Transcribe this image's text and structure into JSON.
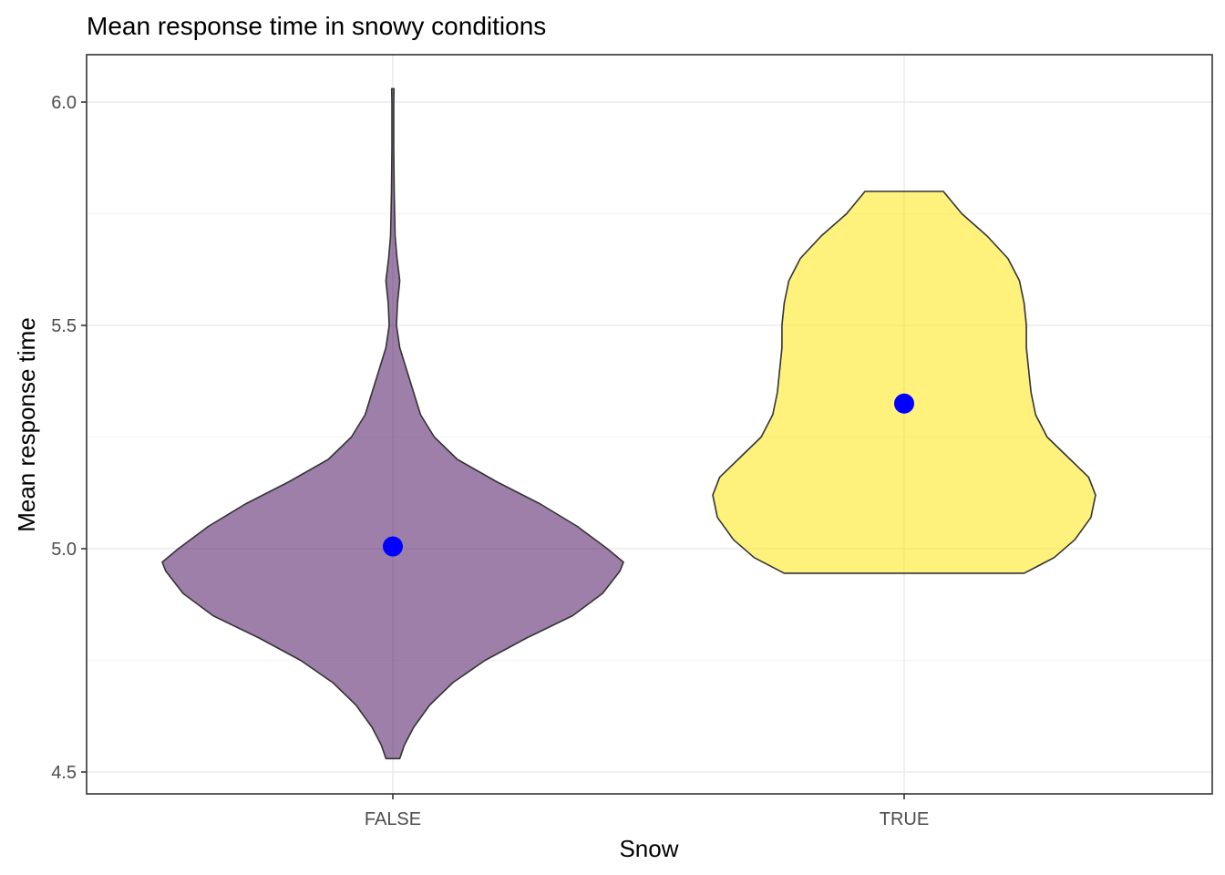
{
  "chart_data": {
    "type": "violin",
    "title": "Mean response time in snowy conditions",
    "xlabel": "Snow",
    "ylabel": "Mean response time",
    "categories": [
      "FALSE",
      "TRUE"
    ],
    "ylim": [
      4.45,
      6.1
    ],
    "y_ticks": [
      4.5,
      5.0,
      5.5,
      6.0
    ],
    "y_tick_labels": [
      "4.5",
      "5.0",
      "5.5",
      "6.0"
    ],
    "grid": true,
    "legend": "none",
    "colors": {
      "FALSE": "#5c2a72",
      "TRUE": "#fde725",
      "mean_point": "#0000ff"
    },
    "series": [
      {
        "category": "FALSE",
        "mean": 5.005,
        "min": 4.53,
        "max": 6.03,
        "density": [
          [
            4.53,
            0.03
          ],
          [
            4.56,
            0.05
          ],
          [
            4.6,
            0.09
          ],
          [
            4.65,
            0.16
          ],
          [
            4.7,
            0.26
          ],
          [
            4.75,
            0.4
          ],
          [
            4.8,
            0.58
          ],
          [
            4.85,
            0.78
          ],
          [
            4.9,
            0.91
          ],
          [
            4.95,
            0.985
          ],
          [
            4.97,
            1.0
          ],
          [
            5.0,
            0.93
          ],
          [
            5.05,
            0.8
          ],
          [
            5.1,
            0.64
          ],
          [
            5.15,
            0.45
          ],
          [
            5.2,
            0.28
          ],
          [
            5.25,
            0.18
          ],
          [
            5.3,
            0.12
          ],
          [
            5.35,
            0.09
          ],
          [
            5.4,
            0.06
          ],
          [
            5.45,
            0.03
          ],
          [
            5.5,
            0.016
          ],
          [
            5.55,
            0.02
          ],
          [
            5.6,
            0.03
          ],
          [
            5.65,
            0.018
          ],
          [
            5.7,
            0.01
          ],
          [
            5.8,
            0.006
          ],
          [
            5.9,
            0.004
          ],
          [
            6.0,
            0.004
          ],
          [
            6.03,
            0.005
          ]
        ]
      },
      {
        "category": "TRUE",
        "mean": 5.325,
        "min": 4.945,
        "max": 5.8,
        "density": [
          [
            4.945,
            0.52
          ],
          [
            4.98,
            0.65
          ],
          [
            5.02,
            0.74
          ],
          [
            5.07,
            0.81
          ],
          [
            5.12,
            0.83
          ],
          [
            5.16,
            0.8
          ],
          [
            5.2,
            0.72
          ],
          [
            5.25,
            0.62
          ],
          [
            5.3,
            0.57
          ],
          [
            5.35,
            0.55
          ],
          [
            5.4,
            0.54
          ],
          [
            5.45,
            0.53
          ],
          [
            5.5,
            0.53
          ],
          [
            5.55,
            0.52
          ],
          [
            5.6,
            0.5
          ],
          [
            5.65,
            0.45
          ],
          [
            5.7,
            0.36
          ],
          [
            5.75,
            0.25
          ],
          [
            5.8,
            0.17
          ]
        ]
      }
    ]
  }
}
